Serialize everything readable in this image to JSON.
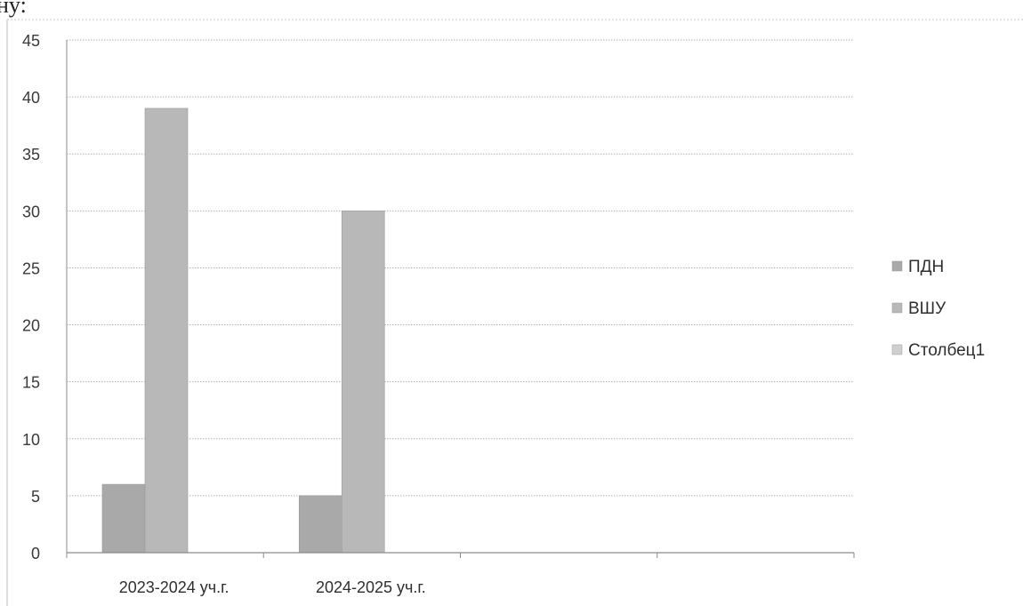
{
  "page_fragment": "ну:",
  "chart_data": {
    "type": "bar",
    "categories": [
      "2023-2024 уч.г.",
      "2024-2025 уч.г.",
      "",
      ""
    ],
    "series": [
      {
        "name": "ПДН",
        "values": [
          6,
          5,
          null,
          null
        ],
        "color": "#a9a9a9"
      },
      {
        "name": "ВШУ",
        "values": [
          39,
          30,
          null,
          null
        ],
        "color": "#b8b8b8"
      },
      {
        "name": "Столбец1",
        "values": [
          null,
          null,
          null,
          null
        ],
        "color": "#cfcfcf"
      }
    ],
    "ylim": [
      0,
      45
    ],
    "ytick_step": 5,
    "grid": true,
    "legend_position": "right"
  }
}
